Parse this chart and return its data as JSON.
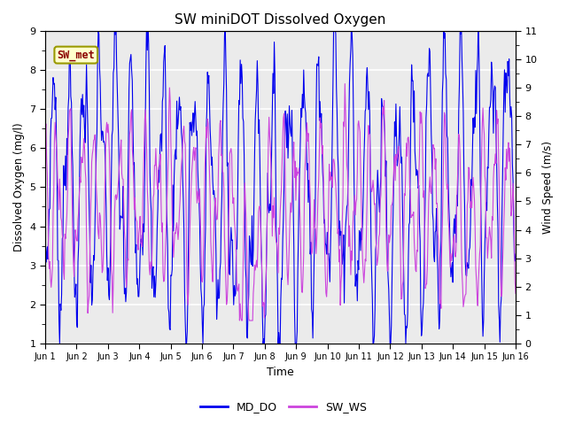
{
  "title": "SW miniDOT Dissolved Oxygen",
  "xlabel": "Time",
  "ylabel_left": "Dissolved Oxygen (mg/l)",
  "ylabel_right": "Wind Speed (m/s)",
  "ylim_left": [
    1.0,
    9.0
  ],
  "ylim_right": [
    0.0,
    11.0
  ],
  "annotation_text": "SW_met",
  "annotation_color": "#8B0000",
  "annotation_bg": "#FFFFCC",
  "annotation_border": "#999900",
  "line_MD_DO_color": "#0000EE",
  "line_SW_WS_color": "#CC44DD",
  "legend_labels": [
    "MD_DO",
    "SW_WS"
  ],
  "xtick_labels": [
    "Jun 1",
    "Jun 2",
    "Jun 3",
    "Jun 4",
    "Jun 5",
    "Jun 6",
    "Jun 7",
    "Jun 8",
    "Jun 9",
    "Jun 10",
    "Jun 11",
    "Jun 12",
    "Jun 13",
    "Jun 14",
    "Jun 15",
    "Jun 16"
  ],
  "yticks_left": [
    1.0,
    2.0,
    3.0,
    4.0,
    5.0,
    6.0,
    7.0,
    8.0,
    9.0
  ],
  "yticks_right": [
    0.0,
    1.0,
    2.0,
    3.0,
    4.0,
    5.0,
    6.0,
    7.0,
    8.0,
    9.0,
    10.0,
    11.0
  ],
  "background_color": "#EBEBEB",
  "fig_background": "#FFFFFF",
  "grid_color": "#FFFFFF",
  "n_points": 720
}
